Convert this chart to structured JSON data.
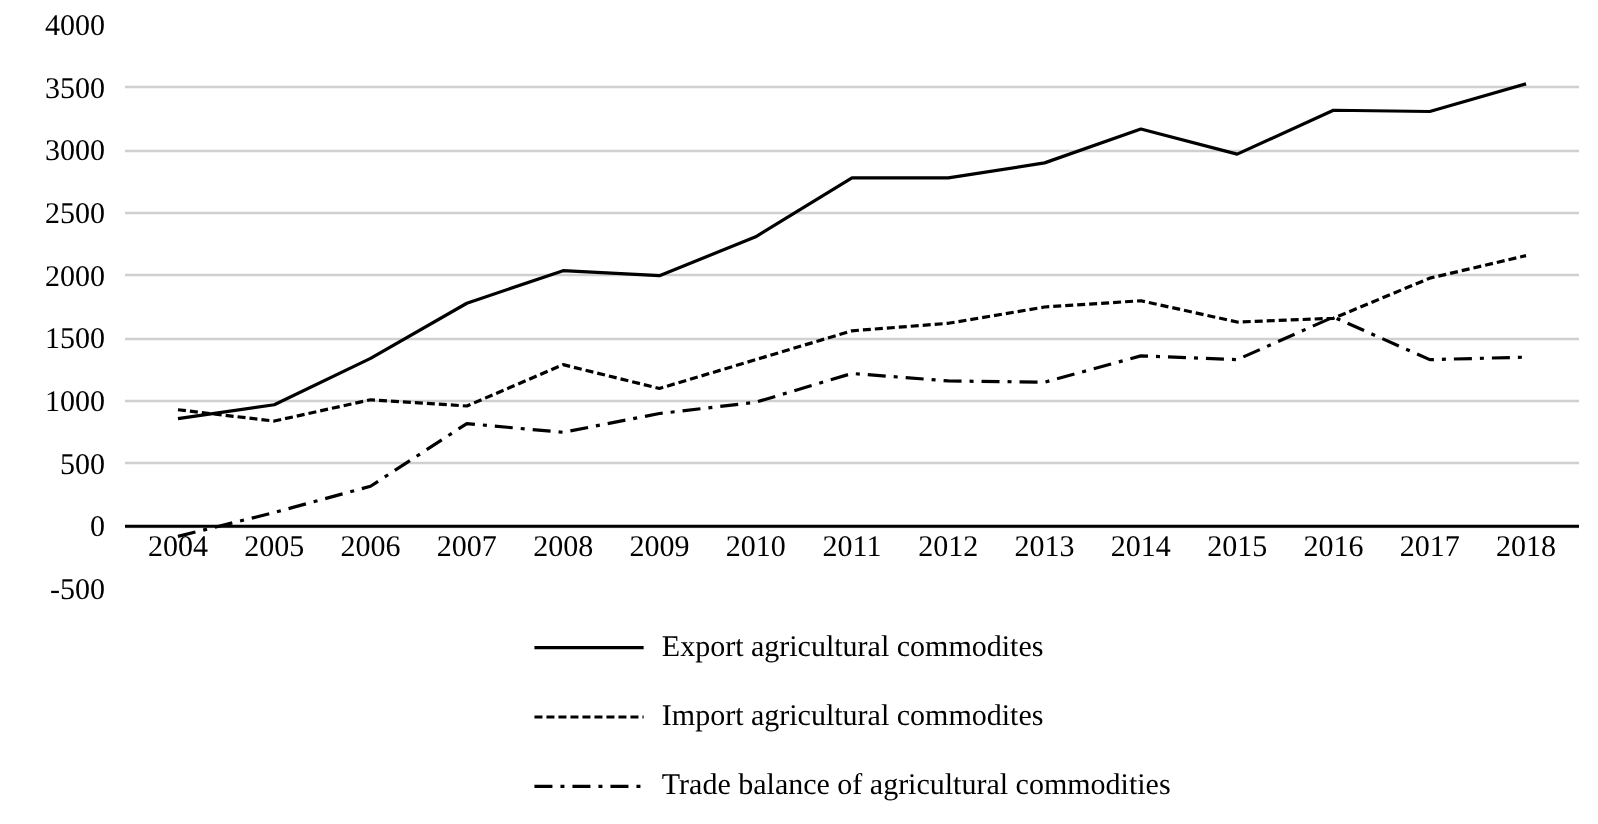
{
  "chart_data": {
    "type": "line",
    "categories": [
      "2004",
      "2005",
      "2006",
      "2007",
      "2008",
      "2009",
      "2010",
      "2011",
      "2012",
      "2013",
      "2014",
      "2015",
      "2016",
      "2017",
      "2018"
    ],
    "series": [
      {
        "name": "Export agricultural commodites",
        "color": "#000000",
        "line_style": "solid",
        "values": [
          860,
          970,
          1340,
          1780,
          2040,
          2000,
          2310,
          2780,
          2780,
          2900,
          3170,
          2970,
          3320,
          3310,
          3530
        ]
      },
      {
        "name": "Import agricultural commodites",
        "color": "#000000",
        "line_style": "dashed",
        "values": [
          930,
          840,
          1010,
          960,
          1290,
          1100,
          1330,
          1560,
          1620,
          1750,
          1800,
          1630,
          1660,
          1980,
          2160
        ]
      },
      {
        "name": "Trade balance of agricultural commodities",
        "color": "#000000",
        "line_style": "dashdot",
        "values": [
          -80,
          110,
          320,
          820,
          750,
          900,
          990,
          1220,
          1160,
          1150,
          1360,
          1330,
          1670,
          1330,
          1350
        ]
      }
    ],
    "ylim": [
      -500,
      4000
    ],
    "yticks": [
      -500,
      0,
      500,
      1000,
      1500,
      2000,
      2500,
      3000,
      3500,
      4000
    ],
    "grid": "y",
    "legend": "bottom",
    "marker": "none"
  }
}
